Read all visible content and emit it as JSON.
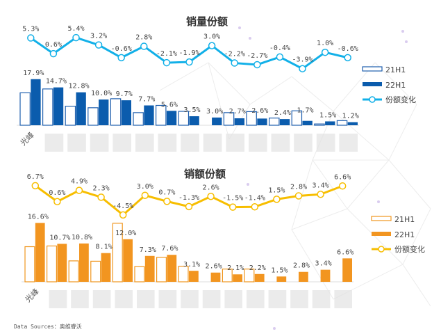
{
  "source_label": "Data Sources：奥维睿沃",
  "chart_data": [
    {
      "type": "bar",
      "title": "销量份额",
      "categories": [
        "光峰",
        "",
        "",
        "",
        "",
        "",
        "",
        "",
        "",
        "",
        "",
        "",
        "",
        "",
        ""
      ],
      "colors": {
        "21H1": "#1f5fae",
        "22H1": "#0b5cad",
        "line": "#12b0e8"
      },
      "legend_placement": "right",
      "legend": [
        "21H1",
        "22H1",
        "份额变化"
      ],
      "series": [
        {
          "name": "21H1",
          "values": [
            12.6,
            14.1,
            7.4,
            6.8,
            10.3,
            4.9,
            7.7,
            5.4,
            0,
            4.9,
            5.3,
            2.8,
            5.6,
            0.5,
            1.8
          ]
        },
        {
          "name": "22H1",
          "values": [
            17.9,
            14.7,
            12.8,
            10.0,
            9.7,
            7.7,
            5.6,
            3.5,
            3.0,
            2.7,
            2.6,
            2.4,
            1.7,
            1.5,
            1.2
          ]
        },
        {
          "name": "份额变化",
          "type": "line",
          "values": [
            5.3,
            0.6,
            5.4,
            3.2,
            -0.6,
            2.8,
            -2.1,
            -1.9,
            3.0,
            -2.2,
            -2.7,
            -0.4,
            -3.9,
            1.0,
            -0.6
          ]
        }
      ],
      "bar_labels": [
        "17.9%",
        "14.7%",
        "12.8%",
        "10.0%",
        "9.7%",
        "7.7%",
        "5.6%",
        "3.5%",
        "3.0%",
        "2.7%",
        "2.6%",
        "2.4%",
        "1.7%",
        "1.5%",
        "1.2%"
      ],
      "line_labels": [
        "5.3%",
        "0.6%",
        "5.4%",
        "3.2%",
        "-0.6%",
        "2.8%",
        "-2.1%",
        "-1.9%",
        "3.0%",
        "-2.2%",
        "-2.7%",
        "-0.4%",
        "-3.9%",
        "1.0%",
        "-0.6%"
      ]
    },
    {
      "type": "bar",
      "title": "销额份额",
      "categories": [
        "光峰",
        "",
        "",
        "",
        "",
        "",
        "",
        "",
        "",
        "",
        "",
        "",
        "",
        "",
        ""
      ],
      "colors": {
        "21H1": "#f0961e",
        "22H1": "#f29520",
        "line": "#f7be00"
      },
      "legend_placement": "right",
      "legend": [
        "21H1",
        "22H1",
        "份额变化"
      ],
      "series": [
        {
          "name": "21H1",
          "values": [
            9.9,
            10.1,
            5.9,
            5.8,
            16.5,
            4.3,
            6.9,
            4.4,
            0,
            3.6,
            3.6,
            0,
            0,
            0,
            0
          ]
        },
        {
          "name": "22H1",
          "values": [
            16.6,
            10.7,
            10.8,
            8.1,
            12.0,
            7.3,
            7.6,
            3.1,
            2.6,
            2.1,
            2.2,
            1.5,
            2.8,
            3.4,
            6.6
          ]
        },
        {
          "name": "份额变化",
          "type": "line",
          "values": [
            6.7,
            0.6,
            4.9,
            2.3,
            -4.5,
            3.0,
            0.7,
            -1.3,
            2.6,
            -1.5,
            -1.4,
            1.5,
            2.8,
            3.4,
            6.6
          ]
        }
      ],
      "bar_labels": [
        "16.6%",
        "10.7%",
        "10.8%",
        "8.1%",
        "12.0%",
        "7.3%",
        "7.6%",
        "3.1%",
        "2.6%",
        "2.1%",
        "2.2%",
        "1.5%",
        "2.8%",
        "3.4%",
        "6.6%"
      ],
      "line_labels": [
        "6.7%",
        "0.6%",
        "4.9%",
        "2.3%",
        "-4.5%",
        "3.0%",
        "0.7%",
        "-1.3%",
        "2.6%",
        "-1.5%",
        "-1.4%",
        "1.5%",
        "2.8%",
        "3.4%",
        "6.6%"
      ]
    }
  ]
}
